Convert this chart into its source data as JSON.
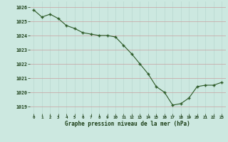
{
  "x": [
    0,
    1,
    2,
    3,
    4,
    5,
    6,
    7,
    8,
    9,
    10,
    11,
    12,
    13,
    14,
    15,
    16,
    17,
    18,
    19,
    20,
    21,
    22,
    23
  ],
  "y": [
    1025.8,
    1025.3,
    1025.5,
    1025.2,
    1024.7,
    1024.5,
    1024.2,
    1024.1,
    1024.0,
    1024.0,
    1023.9,
    1023.3,
    1022.7,
    1022.0,
    1021.3,
    1020.4,
    1020.0,
    1019.1,
    1019.2,
    1019.6,
    1020.4,
    1020.5,
    1020.5,
    1020.7
  ],
  "line_color": "#2d5a27",
  "marker_color": "#2d5a27",
  "bg_color": "#cce8e0",
  "grid_color_v": "#b8d8d0",
  "grid_color_h": "#c8a0a0",
  "xlabel": "Graphe pression niveau de la mer (hPa)",
  "xlabel_color": "#1a3d15",
  "tick_color": "#1a3d15",
  "ylim": [
    1018.5,
    1026.4
  ],
  "yticks": [
    1019,
    1020,
    1021,
    1022,
    1023,
    1024,
    1025,
    1026
  ],
  "xticks": [
    0,
    1,
    2,
    3,
    4,
    5,
    6,
    7,
    8,
    9,
    10,
    11,
    12,
    13,
    14,
    15,
    16,
    17,
    18,
    19,
    20,
    21,
    22,
    23
  ],
  "xtick_labels": [
    "0",
    "1",
    "2",
    "3",
    "4",
    "5",
    "6",
    "7",
    "8",
    "9",
    "10",
    "11",
    "12",
    "13",
    "14",
    "15",
    "16",
    "17",
    "18",
    "19",
    "20",
    "21",
    "22",
    "23"
  ]
}
